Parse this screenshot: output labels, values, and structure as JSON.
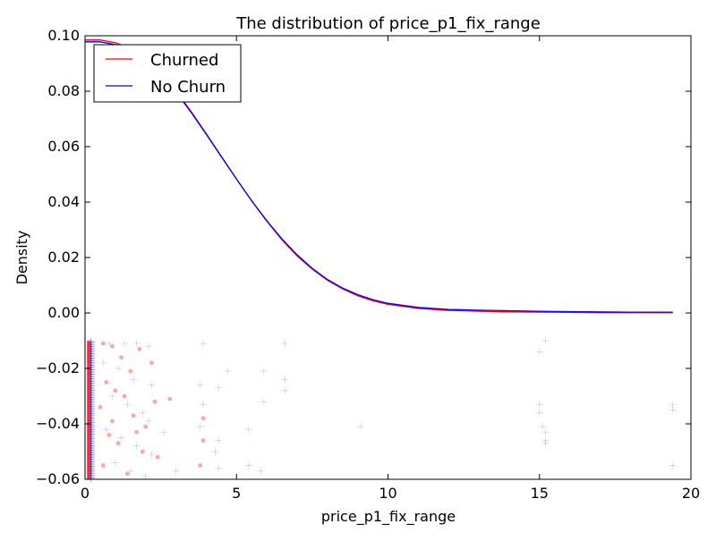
{
  "chart_data": {
    "type": "line",
    "title": "The distribution of price_p1_fix_range",
    "xlabel": "price_p1_fix_range",
    "ylabel": "Density",
    "xlim": [
      0,
      20
    ],
    "ylim": [
      -0.06,
      0.1
    ],
    "x_ticks": [
      "0",
      "5",
      "10",
      "15",
      "20"
    ],
    "y_ticks": [
      "−0.06",
      "−0.04",
      "−0.02",
      "0.00",
      "0.02",
      "0.04",
      "0.06",
      "0.08",
      "0.10"
    ],
    "legend": {
      "position": "top-left",
      "entries": [
        "Churned",
        "No Churn"
      ]
    },
    "series": [
      {
        "name": "Churned",
        "color": "#ff0000",
        "x": [
          0,
          0.5,
          1,
          1.5,
          2,
          2.5,
          3,
          3.5,
          4,
          4.5,
          5,
          5.5,
          6,
          6.5,
          7,
          7.5,
          8,
          8.5,
          9,
          9.5,
          10,
          11,
          12,
          13,
          14,
          15,
          16,
          17,
          18,
          19.4
        ],
        "y": [
          0.0985,
          0.0985,
          0.0975,
          0.0955,
          0.0915,
          0.0863,
          0.0801,
          0.0727,
          0.0647,
          0.0565,
          0.0483,
          0.0404,
          0.0331,
          0.0264,
          0.0206,
          0.0158,
          0.0118,
          0.0087,
          0.0062,
          0.0044,
          0.0031,
          0.0016,
          0.0009,
          0.0006,
          0.0004,
          0.0003,
          0.0002,
          0.0001,
          0.0001,
          0.0001
        ]
      },
      {
        "name": "No Churn",
        "color": "#0000ff",
        "x": [
          0,
          0.5,
          1,
          1.5,
          2,
          2.5,
          3,
          3.5,
          4,
          4.5,
          5,
          5.5,
          6,
          6.5,
          7,
          7.5,
          8,
          8.5,
          9,
          9.5,
          10,
          11,
          12,
          13,
          14,
          15,
          16,
          17,
          18,
          19.4
        ],
        "y": [
          0.0978,
          0.0978,
          0.0968,
          0.0948,
          0.091,
          0.0858,
          0.0797,
          0.0724,
          0.0645,
          0.0564,
          0.0483,
          0.0405,
          0.0333,
          0.0267,
          0.021,
          0.0161,
          0.0121,
          0.009,
          0.0066,
          0.0048,
          0.0035,
          0.002,
          0.0013,
          0.001,
          0.0008,
          0.0006,
          0.0005,
          0.0004,
          0.0003,
          0.0003
        ]
      }
    ],
    "rug": [
      {
        "name": "Churned",
        "marker": "circle",
        "color": "#ff0000",
        "points": [
          [
            0.6,
            -0.011
          ],
          [
            0.9,
            -0.012
          ],
          [
            1.2,
            -0.016
          ],
          [
            1.5,
            -0.021
          ],
          [
            0.7,
            -0.025
          ],
          [
            1.0,
            -0.028
          ],
          [
            1.8,
            -0.013
          ],
          [
            2.2,
            -0.018
          ],
          [
            1.3,
            -0.03
          ],
          [
            0.5,
            -0.034
          ],
          [
            1.6,
            -0.037
          ],
          [
            2.0,
            -0.041
          ],
          [
            0.8,
            -0.044
          ],
          [
            1.1,
            -0.047
          ],
          [
            1.9,
            -0.05
          ],
          [
            2.4,
            -0.052
          ],
          [
            0.6,
            -0.055
          ],
          [
            1.4,
            -0.058
          ],
          [
            2.3,
            -0.032
          ],
          [
            3.9,
            -0.038
          ],
          [
            3.9,
            -0.046
          ],
          [
            3.8,
            -0.055
          ],
          [
            2.8,
            -0.031
          ],
          [
            0.9,
            -0.039
          ],
          [
            1.7,
            -0.043
          ]
        ]
      },
      {
        "name": "No Churn",
        "marker": "plus",
        "color": "#0000ff",
        "points": [
          [
            0.8,
            -0.011
          ],
          [
            1.3,
            -0.011
          ],
          [
            1.7,
            -0.011
          ],
          [
            2.1,
            -0.012
          ],
          [
            0.6,
            -0.018
          ],
          [
            1.1,
            -0.02
          ],
          [
            1.6,
            -0.024
          ],
          [
            2.2,
            -0.026
          ],
          [
            0.9,
            -0.03
          ],
          [
            1.4,
            -0.033
          ],
          [
            1.9,
            -0.036
          ],
          [
            2.1,
            -0.039
          ],
          [
            0.7,
            -0.042
          ],
          [
            1.2,
            -0.045
          ],
          [
            1.7,
            -0.048
          ],
          [
            2.2,
            -0.051
          ],
          [
            1.0,
            -0.054
          ],
          [
            1.5,
            -0.057
          ],
          [
            2.0,
            -0.059
          ],
          [
            3.9,
            -0.011
          ],
          [
            3.8,
            -0.026
          ],
          [
            4.4,
            -0.027
          ],
          [
            4.7,
            -0.021
          ],
          [
            3.9,
            -0.033
          ],
          [
            4.4,
            -0.046
          ],
          [
            4.3,
            -0.05
          ],
          [
            4.4,
            -0.056
          ],
          [
            5.4,
            -0.042
          ],
          [
            5.9,
            -0.021
          ],
          [
            5.9,
            -0.032
          ],
          [
            5.8,
            -0.057
          ],
          [
            5.4,
            -0.055
          ],
          [
            6.6,
            -0.011
          ],
          [
            6.6,
            -0.024
          ],
          [
            6.6,
            -0.028
          ],
          [
            9.1,
            -0.041
          ],
          [
            15.2,
            -0.01
          ],
          [
            15.0,
            -0.014
          ],
          [
            15.0,
            -0.033
          ],
          [
            15.0,
            -0.036
          ],
          [
            15.1,
            -0.041
          ],
          [
            15.2,
            -0.043
          ],
          [
            15.2,
            -0.046
          ],
          [
            15.2,
            -0.047
          ],
          [
            19.4,
            -0.033
          ],
          [
            19.4,
            -0.035
          ],
          [
            19.4,
            -0.055
          ],
          [
            3.0,
            -0.057
          ],
          [
            3.8,
            -0.041
          ],
          [
            2.6,
            -0.043
          ]
        ]
      }
    ]
  }
}
